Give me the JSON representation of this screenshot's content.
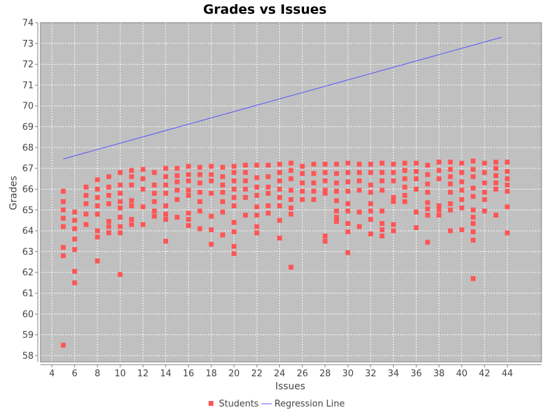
{
  "chart_data": {
    "type": "scatter",
    "title": "Grades vs Issues",
    "xlabel": "Issues",
    "ylabel": "Grades",
    "xlim": [
      3,
      47
    ],
    "ylim": [
      57.7,
      74
    ],
    "xticks": [
      4,
      6,
      8,
      10,
      12,
      14,
      16,
      18,
      20,
      22,
      24,
      26,
      28,
      30,
      32,
      34,
      36,
      38,
      40,
      42,
      44
    ],
    "yticks": [
      58,
      59,
      60,
      61,
      62,
      63,
      64,
      65,
      66,
      67,
      68,
      69,
      70,
      71,
      72,
      73,
      74
    ],
    "grid": true,
    "legend_position": "bottom-center",
    "colors": {
      "plot_background": "#c0c0c0",
      "students": "#ff5555",
      "regression": "#5555ff",
      "gridline": "#ffffff"
    },
    "series": [
      {
        "name": "Students",
        "kind": "points",
        "points": [
          [
            5,
            58.5
          ],
          [
            5,
            62.8
          ],
          [
            5,
            63.2
          ],
          [
            5,
            64.2
          ],
          [
            5,
            64.6
          ],
          [
            5,
            65.0
          ],
          [
            5,
            65.4
          ],
          [
            5,
            65.9
          ],
          [
            6,
            61.5
          ],
          [
            6,
            62.05
          ],
          [
            6,
            63.1
          ],
          [
            6,
            63.6
          ],
          [
            6,
            64.1
          ],
          [
            6,
            64.5
          ],
          [
            6,
            64.9
          ],
          [
            7,
            64.3
          ],
          [
            7,
            64.8
          ],
          [
            7,
            65.3
          ],
          [
            7,
            65.7
          ],
          [
            7,
            66.1
          ],
          [
            8,
            62.55
          ],
          [
            8,
            63.7
          ],
          [
            8,
            64.0
          ],
          [
            8,
            64.8
          ],
          [
            8,
            65.2
          ],
          [
            8,
            65.6
          ],
          [
            8,
            66.0
          ],
          [
            8,
            66.45
          ],
          [
            9,
            63.9
          ],
          [
            9,
            64.2
          ],
          [
            9,
            64.45
          ],
          [
            9,
            65.3
          ],
          [
            9,
            65.7
          ],
          [
            9,
            66.1
          ],
          [
            9,
            66.6
          ],
          [
            10,
            61.9
          ],
          [
            10,
            63.9
          ],
          [
            10,
            64.2
          ],
          [
            10,
            64.65
          ],
          [
            10,
            65.1
          ],
          [
            10,
            65.4
          ],
          [
            10,
            65.8
          ],
          [
            10,
            66.2
          ],
          [
            10,
            66.8
          ],
          [
            11,
            64.3
          ],
          [
            11,
            64.55
          ],
          [
            11,
            65.2
          ],
          [
            11,
            65.45
          ],
          [
            11,
            66.2
          ],
          [
            11,
            66.6
          ],
          [
            11,
            66.9
          ],
          [
            12,
            64.3
          ],
          [
            12,
            65.15
          ],
          [
            12,
            66.0
          ],
          [
            12,
            66.5
          ],
          [
            12,
            66.95
          ],
          [
            13,
            64.7
          ],
          [
            13,
            64.95
          ],
          [
            13,
            65.4
          ],
          [
            13,
            65.8
          ],
          [
            13,
            66.2
          ],
          [
            13,
            66.8
          ],
          [
            14,
            63.5
          ],
          [
            14,
            64.55
          ],
          [
            14,
            64.8
          ],
          [
            14,
            65.2
          ],
          [
            14,
            65.8
          ],
          [
            14,
            66.2
          ],
          [
            14,
            66.6
          ],
          [
            14,
            67.0
          ],
          [
            15,
            64.65
          ],
          [
            15,
            65.5
          ],
          [
            15,
            65.95
          ],
          [
            15,
            66.35
          ],
          [
            15,
            66.65
          ],
          [
            15,
            67.0
          ],
          [
            16,
            64.25
          ],
          [
            16,
            64.55
          ],
          [
            16,
            64.85
          ],
          [
            16,
            65.7
          ],
          [
            16,
            65.95
          ],
          [
            16,
            66.4
          ],
          [
            16,
            66.7
          ],
          [
            16,
            67.1
          ],
          [
            17,
            64.1
          ],
          [
            17,
            64.95
          ],
          [
            17,
            65.4
          ],
          [
            17,
            65.85
          ],
          [
            17,
            66.3
          ],
          [
            17,
            66.7
          ],
          [
            17,
            67.05
          ],
          [
            18,
            63.35
          ],
          [
            18,
            64.05
          ],
          [
            18,
            64.7
          ],
          [
            18,
            65.8
          ],
          [
            18,
            66.4
          ],
          [
            18,
            66.7
          ],
          [
            18,
            67.1
          ],
          [
            19,
            63.8
          ],
          [
            19,
            64.9
          ],
          [
            19,
            65.4
          ],
          [
            19,
            65.85
          ],
          [
            19,
            66.2
          ],
          [
            19,
            66.6
          ],
          [
            19,
            67.05
          ],
          [
            20,
            62.9
          ],
          [
            20,
            63.25
          ],
          [
            20,
            63.95
          ],
          [
            20,
            64.4
          ],
          [
            20,
            65.2
          ],
          [
            20,
            65.6
          ],
          [
            20,
            66.0
          ],
          [
            20,
            66.4
          ],
          [
            20,
            66.8
          ],
          [
            20,
            67.1
          ],
          [
            21,
            64.75
          ],
          [
            21,
            65.6
          ],
          [
            21,
            66.0
          ],
          [
            21,
            66.4
          ],
          [
            21,
            66.8
          ],
          [
            21,
            67.15
          ],
          [
            22,
            63.9
          ],
          [
            22,
            64.2
          ],
          [
            22,
            64.75
          ],
          [
            22,
            65.15
          ],
          [
            22,
            65.7
          ],
          [
            22,
            66.1
          ],
          [
            22,
            66.55
          ],
          [
            22,
            67.15
          ],
          [
            23,
            64.85
          ],
          [
            23,
            65.2
          ],
          [
            23,
            65.8
          ],
          [
            23,
            66.1
          ],
          [
            23,
            66.6
          ],
          [
            23,
            67.15
          ],
          [
            24,
            63.65
          ],
          [
            24,
            64.5
          ],
          [
            24,
            65.2
          ],
          [
            24,
            65.6
          ],
          [
            24,
            66.0
          ],
          [
            24,
            66.4
          ],
          [
            24,
            66.8
          ],
          [
            24,
            67.2
          ],
          [
            25,
            62.25
          ],
          [
            25,
            64.8
          ],
          [
            25,
            65.1
          ],
          [
            25,
            65.5
          ],
          [
            25,
            65.95
          ],
          [
            25,
            66.5
          ],
          [
            25,
            66.9
          ],
          [
            25,
            67.25
          ],
          [
            26,
            65.5
          ],
          [
            26,
            65.9
          ],
          [
            26,
            66.3
          ],
          [
            26,
            66.75
          ],
          [
            26,
            67.1
          ],
          [
            27,
            65.5
          ],
          [
            27,
            65.9
          ],
          [
            27,
            66.3
          ],
          [
            27,
            66.75
          ],
          [
            27,
            67.2
          ],
          [
            28,
            63.5
          ],
          [
            28,
            63.75
          ],
          [
            28,
            65.8
          ],
          [
            28,
            65.95
          ],
          [
            28,
            66.4
          ],
          [
            28,
            66.8
          ],
          [
            28,
            67.2
          ],
          [
            29,
            64.45
          ],
          [
            29,
            64.65
          ],
          [
            29,
            64.95
          ],
          [
            29,
            65.45
          ],
          [
            29,
            65.9
          ],
          [
            29,
            66.3
          ],
          [
            29,
            66.75
          ],
          [
            29,
            67.2
          ],
          [
            30,
            62.95
          ],
          [
            30,
            63.95
          ],
          [
            30,
            64.35
          ],
          [
            30,
            64.95
          ],
          [
            30,
            65.3
          ],
          [
            30,
            65.9
          ],
          [
            30,
            66.35
          ],
          [
            30,
            66.8
          ],
          [
            30,
            67.25
          ],
          [
            31,
            64.2
          ],
          [
            31,
            64.9
          ],
          [
            31,
            65.95
          ],
          [
            31,
            66.4
          ],
          [
            31,
            66.8
          ],
          [
            31,
            67.2
          ],
          [
            32,
            63.85
          ],
          [
            32,
            64.55
          ],
          [
            32,
            64.95
          ],
          [
            32,
            65.3
          ],
          [
            32,
            65.85
          ],
          [
            32,
            66.2
          ],
          [
            32,
            66.8
          ],
          [
            32,
            67.2
          ],
          [
            33,
            63.75
          ],
          [
            33,
            64.05
          ],
          [
            33,
            64.35
          ],
          [
            33,
            64.95
          ],
          [
            33,
            65.95
          ],
          [
            33,
            66.4
          ],
          [
            33,
            66.8
          ],
          [
            33,
            67.25
          ],
          [
            34,
            64.0
          ],
          [
            34,
            64.3
          ],
          [
            34,
            65.4
          ],
          [
            34,
            65.6
          ],
          [
            34,
            66.4
          ],
          [
            34,
            66.8
          ],
          [
            34,
            67.2
          ],
          [
            35,
            65.4
          ],
          [
            35,
            65.7
          ],
          [
            35,
            66.1
          ],
          [
            35,
            66.5
          ],
          [
            35,
            66.9
          ],
          [
            35,
            67.25
          ],
          [
            36,
            64.15
          ],
          [
            36,
            64.9
          ],
          [
            36,
            66.0
          ],
          [
            36,
            66.5
          ],
          [
            36,
            66.85
          ],
          [
            36,
            67.25
          ],
          [
            37,
            63.45
          ],
          [
            37,
            64.75
          ],
          [
            37,
            65.05
          ],
          [
            37,
            65.35
          ],
          [
            37,
            65.85
          ],
          [
            37,
            66.25
          ],
          [
            37,
            66.7
          ],
          [
            37,
            67.15
          ],
          [
            38,
            64.75
          ],
          [
            38,
            65.0
          ],
          [
            38,
            65.2
          ],
          [
            38,
            66.5
          ],
          [
            38,
            66.9
          ],
          [
            38,
            67.3
          ],
          [
            39,
            64.0
          ],
          [
            39,
            65.0
          ],
          [
            39,
            65.3
          ],
          [
            39,
            65.85
          ],
          [
            39,
            66.25
          ],
          [
            39,
            66.6
          ],
          [
            39,
            66.95
          ],
          [
            39,
            67.3
          ],
          [
            40,
            64.05
          ],
          [
            40,
            65.1
          ],
          [
            40,
            65.5
          ],
          [
            40,
            65.95
          ],
          [
            40,
            66.35
          ],
          [
            40,
            66.8
          ],
          [
            40,
            67.25
          ],
          [
            41,
            61.7
          ],
          [
            41,
            63.55
          ],
          [
            41,
            63.95
          ],
          [
            41,
            64.35
          ],
          [
            41,
            64.65
          ],
          [
            41,
            65.0
          ],
          [
            41,
            65.65
          ],
          [
            41,
            66.05
          ],
          [
            41,
            66.6
          ],
          [
            41,
            66.95
          ],
          [
            41,
            67.35
          ],
          [
            42,
            64.95
          ],
          [
            42,
            65.5
          ],
          [
            42,
            65.85
          ],
          [
            42,
            66.3
          ],
          [
            42,
            66.8
          ],
          [
            42,
            67.25
          ],
          [
            43,
            64.75
          ],
          [
            43,
            66.0
          ],
          [
            43,
            66.3
          ],
          [
            43,
            66.65
          ],
          [
            43,
            67.0
          ],
          [
            43,
            67.3
          ],
          [
            44,
            63.9
          ],
          [
            44,
            65.15
          ],
          [
            44,
            65.9
          ],
          [
            44,
            66.2
          ],
          [
            44,
            66.5
          ],
          [
            44,
            66.85
          ],
          [
            44,
            67.3
          ]
        ]
      },
      {
        "name": "Regression Line",
        "kind": "line",
        "points": [
          [
            5,
            67.45
          ],
          [
            43.5,
            73.3
          ]
        ]
      }
    ]
  }
}
